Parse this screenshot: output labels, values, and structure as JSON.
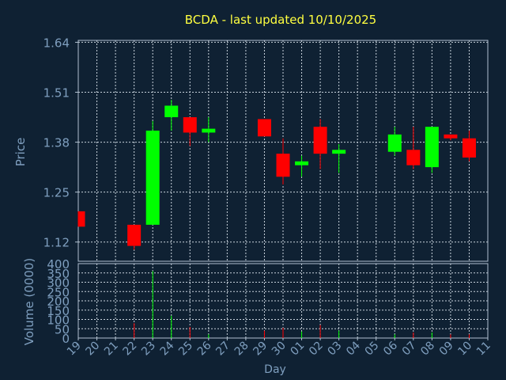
{
  "chart_data": {
    "type": "candlestick",
    "title": "BCDA - last updated 10/10/2025",
    "xlabel": "Day",
    "ylabel": "Price",
    "volume_label": "Volume (0000)",
    "colors": {
      "background": "#0f2133",
      "plot_border": "#b0c0d0",
      "grid": "#c8d2dc",
      "up": "#00ff00",
      "down": "#ff0000",
      "title": "#ffff40",
      "label": "#7f9fbf"
    },
    "price_axis": {
      "ylim": [
        1.07,
        1.645
      ],
      "ticks": [
        1.12,
        1.25,
        1.38,
        1.51,
        1.64
      ],
      "tick_labels": [
        "1.12",
        "1.25",
        "1.38",
        "1.51",
        "1.64"
      ]
    },
    "volume_axis": {
      "ylim": [
        0,
        400
      ],
      "ticks": [
        0,
        50,
        100,
        150,
        200,
        250,
        300,
        350,
        400
      ],
      "tick_labels": [
        "0",
        "50",
        "100",
        "150",
        "200",
        "250",
        "300",
        "350",
        "400"
      ]
    },
    "x_labels": [
      "19",
      "20",
      "21",
      "22",
      "23",
      "24",
      "25",
      "26",
      "27",
      "28",
      "29",
      "30",
      "01",
      "02",
      "03",
      "04",
      "05",
      "06",
      "07",
      "08",
      "09",
      "10",
      "11"
    ],
    "candles": [
      {
        "open": 1.2,
        "high": 1.2,
        "low": 1.16,
        "close": 1.16,
        "volume": 0
      },
      null,
      null,
      {
        "open": 1.165,
        "high": 1.165,
        "low": 1.1,
        "close": 1.11,
        "volume": 80
      },
      {
        "open": 1.165,
        "high": 1.435,
        "low": 1.165,
        "close": 1.41,
        "volume": 360
      },
      {
        "open": 1.445,
        "high": 1.49,
        "low": 1.41,
        "close": 1.475,
        "volume": 120
      },
      {
        "open": 1.445,
        "high": 1.445,
        "low": 1.37,
        "close": 1.405,
        "volume": 60
      },
      {
        "open": 1.405,
        "high": 1.445,
        "low": 1.38,
        "close": 1.415,
        "volume": 20
      },
      null,
      null,
      {
        "open": 1.44,
        "high": 1.44,
        "low": 1.395,
        "close": 1.395,
        "volume": 40
      },
      {
        "open": 1.35,
        "high": 1.39,
        "low": 1.27,
        "close": 1.29,
        "volume": 55
      },
      {
        "open": 1.32,
        "high": 1.345,
        "low": 1.29,
        "close": 1.33,
        "volume": 35
      },
      {
        "open": 1.42,
        "high": 1.44,
        "low": 1.31,
        "close": 1.35,
        "volume": 70
      },
      {
        "open": 1.35,
        "high": 1.375,
        "low": 1.3,
        "close": 1.36,
        "volume": 40
      },
      null,
      null,
      {
        "open": 1.355,
        "high": 1.42,
        "low": 1.345,
        "close": 1.4,
        "volume": 20
      },
      {
        "open": 1.36,
        "high": 1.42,
        "low": 1.31,
        "close": 1.32,
        "volume": 30
      },
      {
        "open": 1.315,
        "high": 1.42,
        "low": 1.3,
        "close": 1.42,
        "volume": 30
      },
      {
        "open": 1.4,
        "high": 1.4,
        "low": 1.385,
        "close": 1.39,
        "volume": 20
      },
      {
        "open": 1.39,
        "high": 1.41,
        "low": 1.33,
        "close": 1.34,
        "volume": 20
      },
      null
    ]
  }
}
